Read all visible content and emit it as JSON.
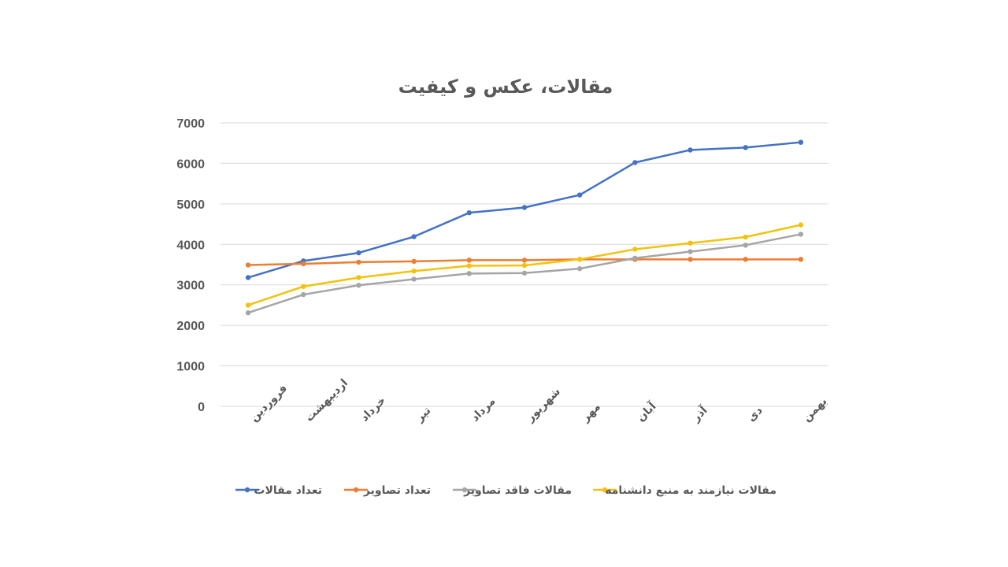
{
  "chart_data": {
    "type": "line",
    "title": "مقالات، عکس و کیفیت",
    "categories": [
      "فروردین",
      "اردیبهشت",
      "خرداد",
      "تیر",
      "مرداد",
      "شهریور",
      "مهر",
      "آبان",
      "آذر",
      "دی",
      "بهمن"
    ],
    "ylim": [
      0,
      7000
    ],
    "yticks": [
      0,
      1000,
      2000,
      3000,
      4000,
      5000,
      6000,
      7000
    ],
    "grid": true,
    "legend_position": "bottom",
    "series": [
      {
        "name": "تعداد مقالات",
        "color": "#4472c4",
        "values": [
          3180,
          3590,
          3790,
          4190,
          4780,
          4910,
          5220,
          6020,
          6330,
          6390,
          6520
        ]
      },
      {
        "name": "تعداد تصاویر",
        "color": "#ed7d31",
        "values": [
          3490,
          3520,
          3560,
          3580,
          3610,
          3610,
          3630,
          3630,
          3630,
          3630,
          3630
        ]
      },
      {
        "name": "مقالات فاقد تصاویر",
        "color": "#a5a5a5",
        "values": [
          2310,
          2760,
          2990,
          3140,
          3280,
          3290,
          3400,
          3660,
          3820,
          3980,
          4250
        ]
      },
      {
        "name": "مقالات نیازمند به منبع دانشنامه",
        "color": "#f4c20d",
        "values": [
          2500,
          2960,
          3180,
          3340,
          3470,
          3480,
          3630,
          3880,
          4030,
          4180,
          4480
        ]
      }
    ]
  }
}
